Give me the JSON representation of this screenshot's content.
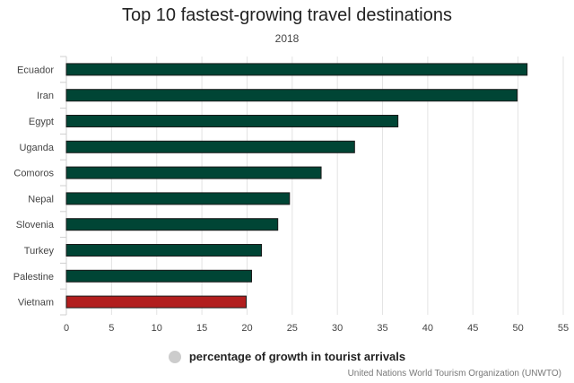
{
  "chart_data": {
    "type": "bar",
    "orientation": "horizontal",
    "title": "Top 10 fastest-growing travel destinations",
    "subtitle": "2018",
    "categories": [
      "Ecuador",
      "Iran",
      "Egypt",
      "Uganda",
      "Comoros",
      "Nepal",
      "Slovenia",
      "Turkey",
      "Palestine",
      "Vietnam"
    ],
    "values": [
      51.0,
      49.9,
      36.7,
      31.9,
      28.2,
      24.7,
      23.4,
      21.6,
      20.5,
      19.9
    ],
    "bar_colors": [
      "#004535",
      "#004535",
      "#004535",
      "#004535",
      "#004535",
      "#004535",
      "#004535",
      "#004535",
      "#004535",
      "#b21e1e"
    ],
    "xlim": [
      0,
      55
    ],
    "xticks": [
      0,
      5,
      10,
      15,
      20,
      25,
      30,
      35,
      40,
      45,
      50,
      55
    ],
    "grid": true,
    "legend": {
      "label": "percentage of growth in tourist arrivals",
      "placement": "bottom-center",
      "color": "#cccccc"
    },
    "source": "United Nations World Tourism Organization (UNWTO)"
  }
}
